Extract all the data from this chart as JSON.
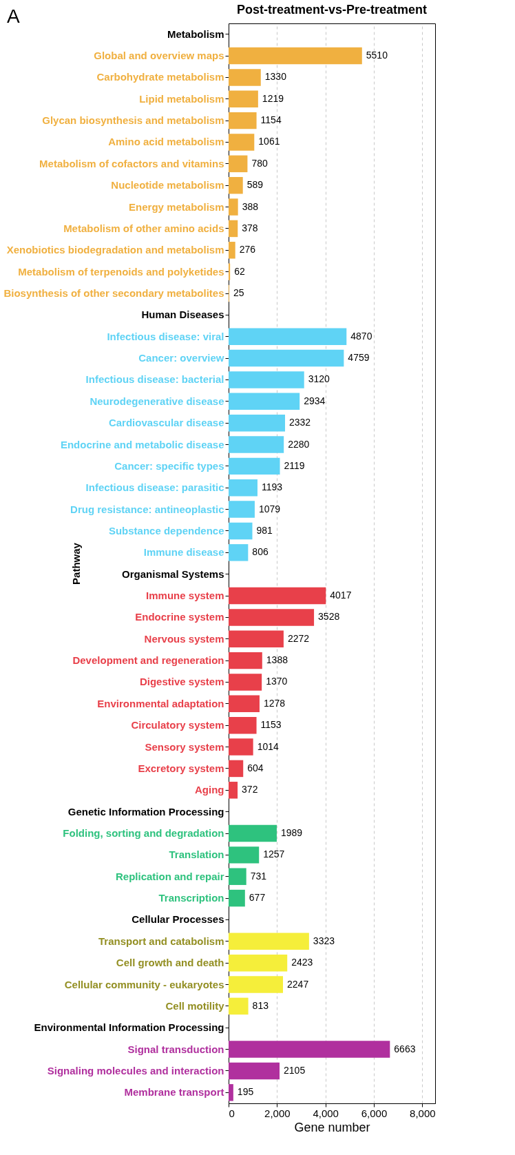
{
  "chart_data": {
    "type": "bar",
    "orientation": "horizontal",
    "title": "Post-treatment-vs-Pre-treatment",
    "xlabel": "Gene number",
    "ylabel": "Pathway",
    "annotations": [
      "A"
    ],
    "categories": [
      "Metabolism",
      "Global and overview maps",
      "Carbohydrate metabolism",
      "Lipid metabolism",
      "Glycan biosynthesis and metabolism",
      "Amino acid metabolism",
      "Metabolism of cofactors and vitamins",
      "Nucleotide metabolism",
      "Energy metabolism",
      "Metabolism of other amino acids",
      "Xenobiotics biodegradation and metabolism",
      "Metabolism of terpenoids and polyketides",
      "Biosynthesis of other secondary metabolites",
      "Human Diseases",
      "Infectious disease: viral",
      "Cancer: overview",
      "Infectious disease: bacterial",
      "Neurodegenerative disease",
      "Cardiovascular disease",
      "Endocrine and metabolic disease",
      "Cancer: specific types",
      "Infectious disease: parasitic",
      "Drug resistance: antineoplastic",
      "Substance dependence",
      "Immune disease",
      "Organismal Systems",
      "Immune system",
      "Endocrine system",
      "Nervous system",
      "Development and regeneration",
      "Digestive system",
      "Environmental adaptation",
      "Circulatory system",
      "Sensory system",
      "Excretory system",
      "Aging",
      "Genetic Information Processing",
      "Folding, sorting and degradation",
      "Translation",
      "Replication and repair",
      "Transcription",
      "Cellular Processes",
      "Transport and catabolism",
      "Cell growth and death",
      "Cellular community - eukaryotes",
      "Cell motility",
      "Environmental Information Processing",
      "Signal transduction",
      "Signaling molecules and interaction",
      "Membrane transport"
    ],
    "series": [
      {
        "color": "#f0b040",
        "values": [
          null,
          5510,
          1330,
          1219,
          1154,
          1061,
          780,
          589,
          388,
          378,
          276,
          62,
          25,
          null,
          null,
          null,
          null,
          null,
          null,
          null,
          null,
          null,
          null,
          null,
          null,
          null,
          null,
          null,
          null,
          null,
          null,
          null,
          null,
          null,
          null,
          null,
          null,
          null,
          null,
          null,
          null,
          null,
          null,
          null,
          null,
          null,
          null,
          null,
          null,
          null
        ]
      },
      {
        "color": "#5fd3f5",
        "values": [
          null,
          null,
          null,
          null,
          null,
          null,
          null,
          null,
          null,
          null,
          null,
          null,
          null,
          null,
          4870,
          4759,
          3120,
          2934,
          2332,
          2280,
          2119,
          1193,
          1079,
          981,
          806,
          null,
          null,
          null,
          null,
          null,
          null,
          null,
          null,
          null,
          null,
          null,
          null,
          null,
          null,
          null,
          null,
          null,
          null,
          null,
          null,
          null,
          null,
          null,
          null,
          null
        ]
      },
      {
        "color": "#e8404a",
        "values": [
          null,
          null,
          null,
          null,
          null,
          null,
          null,
          null,
          null,
          null,
          null,
          null,
          null,
          null,
          null,
          null,
          null,
          null,
          null,
          null,
          null,
          null,
          null,
          null,
          null,
          null,
          4017,
          3528,
          2272,
          1388,
          1370,
          1278,
          1153,
          1014,
          604,
          372,
          null,
          null,
          null,
          null,
          null,
          null,
          null,
          null,
          null,
          null,
          null,
          null,
          null,
          null
        ]
      },
      {
        "color": "#2ec27e",
        "values": [
          null,
          null,
          null,
          null,
          null,
          null,
          null,
          null,
          null,
          null,
          null,
          null,
          null,
          null,
          null,
          null,
          null,
          null,
          null,
          null,
          null,
          null,
          null,
          null,
          null,
          null,
          null,
          null,
          null,
          null,
          null,
          null,
          null,
          null,
          null,
          null,
          null,
          1989,
          1257,
          731,
          677,
          null,
          null,
          null,
          null,
          null,
          null,
          null,
          null,
          null
        ]
      },
      {
        "color": "#f5ee3a",
        "values": [
          null,
          null,
          null,
          null,
          null,
          null,
          null,
          null,
          null,
          null,
          null,
          null,
          null,
          null,
          null,
          null,
          null,
          null,
          null,
          null,
          null,
          null,
          null,
          null,
          null,
          null,
          null,
          null,
          null,
          null,
          null,
          null,
          null,
          null,
          null,
          null,
          null,
          null,
          null,
          null,
          null,
          null,
          3323,
          2423,
          2247,
          813,
          null,
          null,
          null,
          null
        ]
      },
      {
        "color": "#b0309e",
        "values": [
          null,
          null,
          null,
          null,
          null,
          null,
          null,
          null,
          null,
          null,
          null,
          null,
          null,
          null,
          null,
          null,
          null,
          null,
          null,
          null,
          null,
          null,
          null,
          null,
          null,
          null,
          null,
          null,
          null,
          null,
          null,
          null,
          null,
          null,
          null,
          null,
          null,
          null,
          null,
          null,
          null,
          null,
          null,
          null,
          null,
          null,
          null,
          6663,
          2105,
          195
        ]
      }
    ],
    "xlim": [
      0,
      8530
    ],
    "xticks": [
      0,
      {
        "value": 2000,
        "label": "2,000"
      },
      {
        "value": 4000,
        "label": "4,000"
      },
      {
        "value": 6000,
        "label": "6,000"
      },
      {
        "value": 8000,
        "label": "8,000"
      }
    ],
    "grid": "x",
    "data_labels": true
  }
}
